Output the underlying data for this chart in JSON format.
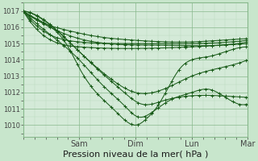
{
  "xlabel": "Pression niveau de la mer( hPa )",
  "bg_color": "#c8e6cc",
  "plot_bg_color": "#d4ead8",
  "grid_minor_color": "#b8d8bc",
  "grid_major_color": "#88b88c",
  "line_color": "#1a5c1a",
  "ylim": [
    1009.3,
    1017.3
  ],
  "yticks": [
    1010,
    1011,
    1012,
    1013,
    1014,
    1015,
    1016,
    1017
  ],
  "xlim": [
    0,
    4
  ],
  "day_labels": [
    "Sam",
    "Dim",
    "Lun",
    "Mar"
  ],
  "day_positions": [
    1.0,
    2.0,
    3.0,
    4.0
  ],
  "xlabel_fontsize": 8,
  "ytick_fontsize": 6,
  "xtick_fontsize": 7
}
